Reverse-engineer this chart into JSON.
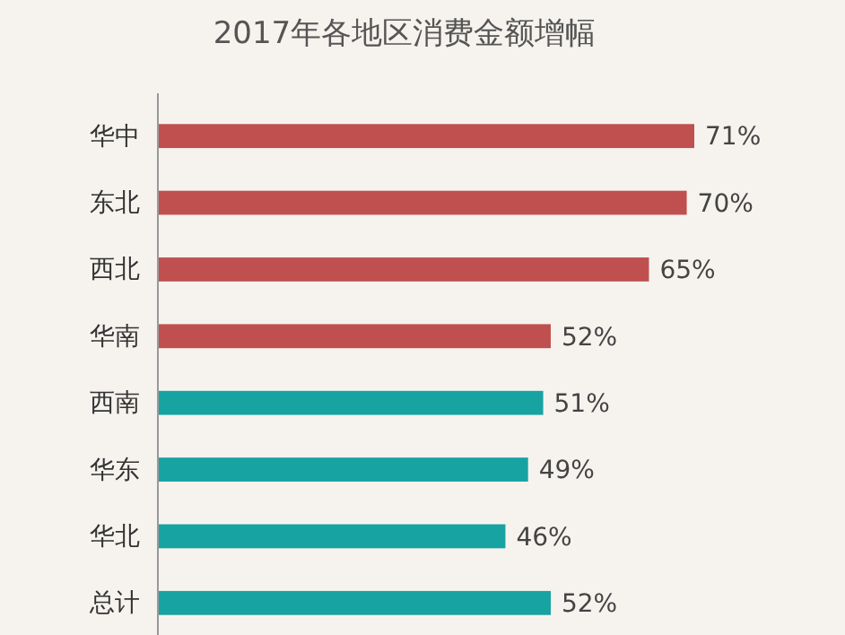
{
  "chart_data": {
    "type": "bar",
    "orientation": "horizontal",
    "title": "2017年各地区消费金额增幅",
    "categories": [
      "华中",
      "东北",
      "西北",
      "华南",
      "西南",
      "华东",
      "华北",
      "总计"
    ],
    "values": [
      71,
      70,
      65,
      52,
      51,
      49,
      46,
      52
    ],
    "colors": [
      "#c0504f",
      "#c0504f",
      "#c0504f",
      "#c0504f",
      "#17a3a2",
      "#17a3a2",
      "#17a3a2",
      "#17a3a2"
    ],
    "value_labels": [
      "71%",
      "70%",
      "65%",
      "52%",
      "51%",
      "49%",
      "46%",
      "52%"
    ]
  }
}
